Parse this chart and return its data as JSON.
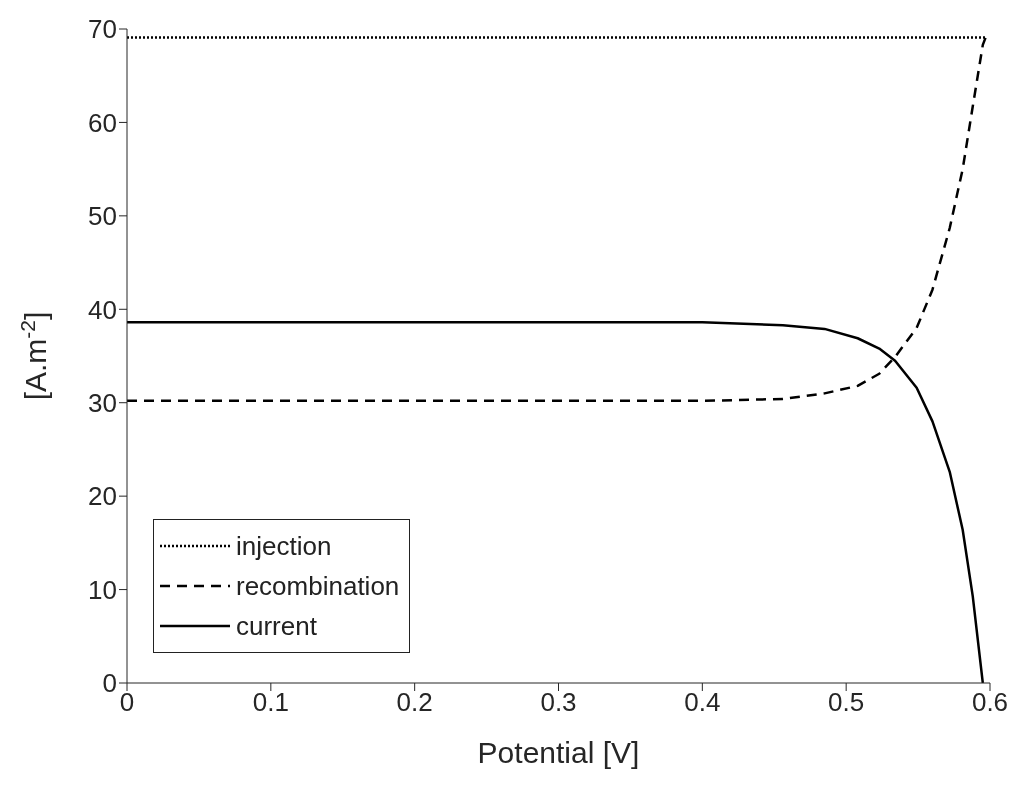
{
  "chart_data": {
    "type": "line",
    "xlabel": "Potential [V]",
    "ylabel": "[A.m$^{-2}$]",
    "xlim": [
      0,
      0.6
    ],
    "xticks": [
      0,
      0.1,
      0.2,
      0.3,
      0.4,
      0.5,
      0.6
    ],
    "ylim": [
      0,
      70
    ],
    "yticks": [
      0,
      10,
      20,
      30,
      40,
      50,
      60,
      70
    ],
    "grid": false,
    "legend": "bottom left",
    "marker": "none",
    "series": [
      {
        "name": "injection",
        "color": "#000000",
        "line_style": "dotted",
        "x": [
          0,
          0.597
        ],
        "values": [
          69.1,
          69.1
        ]
      },
      {
        "name": "recombination",
        "color": "#000000",
        "line_style": "dashed",
        "x": [
          0,
          0.2,
          0.4,
          0.456,
          0.485,
          0.508,
          0.523,
          0.534,
          0.549,
          0.56,
          0.572,
          0.581,
          0.588,
          0.595,
          0.597
        ],
        "values": [
          30.2,
          30.2,
          30.2,
          30.4,
          31.0,
          31.8,
          33.1,
          34.9,
          38.0,
          42.1,
          48.7,
          55.0,
          61.7,
          68.3,
          69.1
        ]
      },
      {
        "name": "current",
        "color": "#000000",
        "line_style": "solid",
        "x": [
          0,
          0.2,
          0.4,
          0.456,
          0.485,
          0.508,
          0.523,
          0.534,
          0.549,
          0.56,
          0.572,
          0.581,
          0.588,
          0.595
        ],
        "values": [
          38.6,
          38.6,
          38.6,
          38.3,
          37.9,
          36.9,
          35.8,
          34.5,
          31.6,
          28.0,
          22.6,
          16.4,
          9.3,
          0
        ]
      }
    ]
  }
}
